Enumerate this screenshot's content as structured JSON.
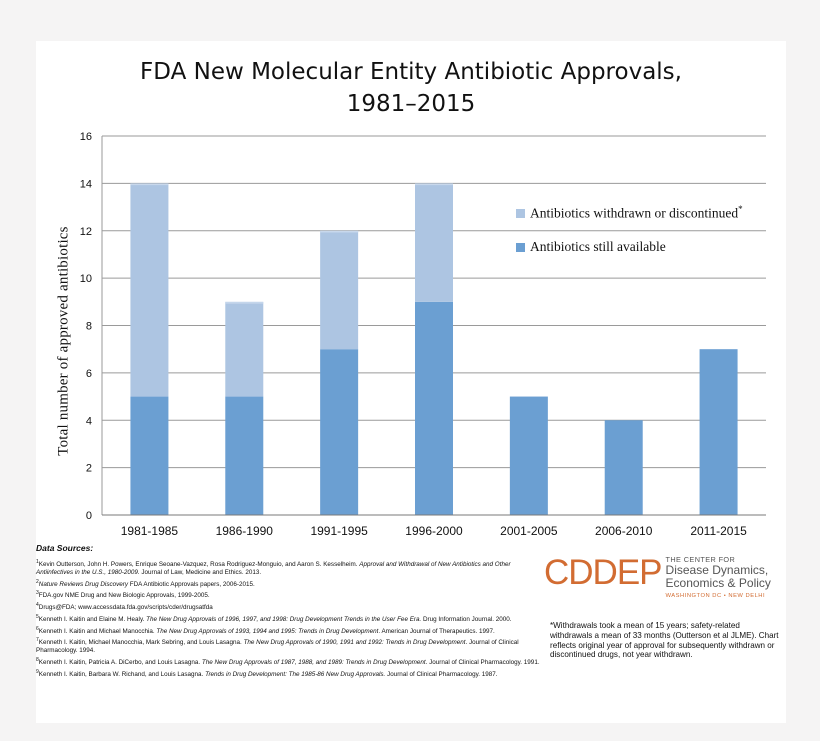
{
  "chart_data": {
    "type": "bar",
    "stacked": true,
    "title": "FDA New Molecular Entity Antibiotic Approvals, 1981–2015",
    "title_lines": [
      "FDA New Molecular Entity Antibiotic Approvals,",
      "1981–2015"
    ],
    "ylabel": "Total number of approved antibiotics",
    "ylim": [
      0,
      16
    ],
    "yticks": [
      0,
      2,
      4,
      6,
      8,
      10,
      12,
      14,
      16
    ],
    "grid": true,
    "legend_position": "right",
    "categories": [
      "1981-1985",
      "1986-1990",
      "1991-1995",
      "1996-2000",
      "2001-2005",
      "2006-2010",
      "2011-2015"
    ],
    "series": [
      {
        "name": "Antibiotics still available",
        "values": [
          5,
          5,
          7,
          9,
          5,
          4,
          7
        ],
        "color": "#6b9fd2"
      },
      {
        "name": "Antibiotics withdrawn or discontinued",
        "name_sup": "*",
        "values": [
          9,
          4,
          5,
          5,
          0,
          0,
          0
        ],
        "color": "#adc5e2"
      }
    ]
  },
  "sources": {
    "heading": "Data Sources:",
    "refs": [
      {
        "num": "1",
        "parts": [
          {
            "t": "Kevin Outterson, John H. Powers, Enrique Seoane-Vazquez, Rosa Rodriguez-Monguio, and Aaron S. Kesselheim. "
          },
          {
            "t": "Approval and Withdrawal of New Antibiotics and Other Antiinfectives in the U.S., 1980-2009.",
            "i": true
          },
          {
            "t": " Journal of Law, Medicine and Ethics. 2013."
          }
        ]
      },
      {
        "num": "2",
        "parts": [
          {
            "t": "Nature Reviews Drug Discovery",
            "i": true
          },
          {
            "t": " FDA Antibiotic Approvals papers, 2006-2015."
          }
        ]
      },
      {
        "num": "3",
        "parts": [
          {
            "t": "FDA.gov NME Drug and New Biologic Approvals, 1999-2005."
          }
        ]
      },
      {
        "num": "4",
        "parts": [
          {
            "t": "Drugs@FDA; www.accessdata.fda.gov/scripts/cder/drugsatfda"
          }
        ]
      },
      {
        "num": "5",
        "parts": [
          {
            "t": "Kenneth I. Kaitin and Elaine M. Healy. "
          },
          {
            "t": "The New Drug Approvals of 1996, 1997, and 1998: Drug Development Trends in the User Fee Era.",
            "i": true
          },
          {
            "t": " Drug Information Journal. 2000."
          }
        ]
      },
      {
        "num": "6",
        "parts": [
          {
            "t": "Kenneth I. Kaitin and Michael Manocchia. "
          },
          {
            "t": "The New Drug Approvals of 1993, 1994 and 1995: Trends in Drug Development",
            "i": true
          },
          {
            "t": ". American Journal of Therapeutics. 1997."
          }
        ]
      },
      {
        "num": "7",
        "parts": [
          {
            "t": "Kenneth I. Kaitin, Michael Manocchia, Mark Sebring, and Louis Lasagna. "
          },
          {
            "t": "The New Drug Approvals of 1990, 1991 and 1992: Trends in Drug Development",
            "i": true
          },
          {
            "t": ". Journal of Clinical Pharmacology. 1994."
          }
        ]
      },
      {
        "num": "8",
        "parts": [
          {
            "t": "Kenneth I. Kaitin, Patricia A. DiCerbo, and Louis Lasagna. "
          },
          {
            "t": "The New Drug Approvals of 1987, 1988, and 1989: Trends in Drug Development",
            "i": true
          },
          {
            "t": ". Journal of Clinical Pharmacology. 1991."
          }
        ]
      },
      {
        "num": "9",
        "parts": [
          {
            "t": "Kenneth I. Kaitin, Barbara W. Richand, and Louis Lasagna. "
          },
          {
            "t": "Trends in Drug Development: The 1985-86 New Drug Approvals.",
            "i": true
          },
          {
            "t": " Journal of Clinical Pharmacology. 1987."
          }
        ]
      }
    ]
  },
  "logo": {
    "mark": "CDDEP",
    "line1": "THE CENTER FOR",
    "line2": "Disease Dynamics,",
    "line3": "Economics & Policy",
    "line4": "WASHINGTON DC • NEW DELHI",
    "color": "#d26c32"
  },
  "note": "*Withdrawals took a mean of 15 years; safety-related withdrawals a mean of 33 months (Outterson et al JLME). Chart reflects original year of approval for subsequently withdrawn or discontinued drugs, not year withdrawn."
}
